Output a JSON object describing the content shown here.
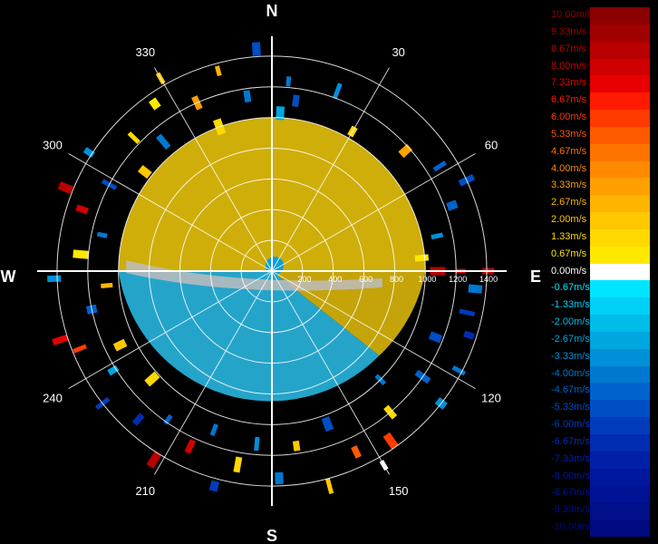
{
  "chart_data": {
    "type": "polar-ppi",
    "compass": {
      "north": "N",
      "east": "E",
      "south": "S",
      "west": "W"
    },
    "azimuth_labels": [
      "30",
      "60",
      "120",
      "150",
      "210",
      "240",
      "300",
      "330"
    ],
    "range_labels": [
      "200",
      "400",
      "600",
      "800",
      "1000",
      "1200",
      "1400"
    ],
    "range_rings": [
      200,
      400,
      600,
      800,
      1000,
      1200,
      1400
    ],
    "max_range": 1500,
    "spokes_deg": [
      0,
      30,
      60,
      90,
      120,
      150,
      180,
      210,
      240,
      270,
      300,
      330
    ],
    "central_echo": {
      "approaching_color": "#e6c10a",
      "receding_color": "#29b6e0",
      "zero_color": "#bdbdbd",
      "approx_radius": 1000
    },
    "scatter_gates": [
      {
        "az": 5,
        "r": 1240,
        "v": -4.0
      },
      {
        "az": 8,
        "r": 1120,
        "v": -5.3
      },
      {
        "az": 3,
        "r": 1030,
        "v": -2.7
      },
      {
        "az": 20,
        "r": 1250,
        "v": -3.3
      },
      {
        "az": 30,
        "r": 1050,
        "v": 1.3
      },
      {
        "az": 48,
        "r": 1170,
        "v": 3.3
      },
      {
        "az": 58,
        "r": 1290,
        "v": -4.7
      },
      {
        "az": 65,
        "r": 1400,
        "v": -5.3
      },
      {
        "az": 70,
        "r": 1250,
        "v": -4.7
      },
      {
        "az": 78,
        "r": 1100,
        "v": -3.3
      },
      {
        "az": 85,
        "r": 980,
        "v": 0.67
      },
      {
        "az": 90,
        "r": 1080,
        "v": 8.7
      },
      {
        "az": 90,
        "r": 1230,
        "v": 8.0
      },
      {
        "az": 90,
        "r": 1410,
        "v": 8.7
      },
      {
        "az": 95,
        "r": 1330,
        "v": -4.0
      },
      {
        "az": 102,
        "r": 1300,
        "v": -6.0
      },
      {
        "az": 108,
        "r": 1350,
        "v": -6.7
      },
      {
        "az": 112,
        "r": 1150,
        "v": -5.3
      },
      {
        "az": 118,
        "r": 1380,
        "v": -4.0
      },
      {
        "az": 125,
        "r": 1200,
        "v": -4.7
      },
      {
        "az": 128,
        "r": 1400,
        "v": -3.3
      },
      {
        "az": 135,
        "r": 1000,
        "v": -4.0
      },
      {
        "az": 140,
        "r": 1200,
        "v": 1.3
      },
      {
        "az": 145,
        "r": 1350,
        "v": 6.0
      },
      {
        "az": 150,
        "r": 1460,
        "v": -0.3
      },
      {
        "az": 155,
        "r": 1300,
        "v": 5.3
      },
      {
        "az": 160,
        "r": 1060,
        "v": -5.3
      },
      {
        "az": 165,
        "r": 1450,
        "v": 2.0
      },
      {
        "az": 172,
        "r": 1150,
        "v": 2.0
      },
      {
        "az": 178,
        "r": 1350,
        "v": -4.0
      },
      {
        "az": 185,
        "r": 1130,
        "v": -3.3
      },
      {
        "az": 190,
        "r": 1280,
        "v": 1.3
      },
      {
        "az": 195,
        "r": 1450,
        "v": -6.0
      },
      {
        "az": 200,
        "r": 1100,
        "v": -4.0
      },
      {
        "az": 205,
        "r": 1260,
        "v": 8.0
      },
      {
        "az": 212,
        "r": 1450,
        "v": 8.7
      },
      {
        "az": 215,
        "r": 1180,
        "v": -4.7
      },
      {
        "az": 222,
        "r": 1300,
        "v": -6.7
      },
      {
        "az": 228,
        "r": 1050,
        "v": 1.3
      },
      {
        "az": 232,
        "r": 1400,
        "v": -6.0
      },
      {
        "az": 238,
        "r": 1220,
        "v": -2.7
      },
      {
        "az": 244,
        "r": 1100,
        "v": 2.0
      },
      {
        "az": 248,
        "r": 1350,
        "v": 6.0
      },
      {
        "az": 252,
        "r": 1450,
        "v": 7.3
      },
      {
        "az": 258,
        "r": 1200,
        "v": -4.7
      },
      {
        "az": 265,
        "r": 1080,
        "v": 2.67
      },
      {
        "az": 268,
        "r": 1420,
        "v": -3.3
      },
      {
        "az": 275,
        "r": 1250,
        "v": 0.67
      },
      {
        "az": 282,
        "r": 1130,
        "v": -4.0
      },
      {
        "az": 288,
        "r": 1300,
        "v": 8.0
      },
      {
        "az": 292,
        "r": 1450,
        "v": 8.7
      },
      {
        "az": 298,
        "r": 1200,
        "v": -5.3
      },
      {
        "az": 303,
        "r": 1420,
        "v": -3.3
      },
      {
        "az": 308,
        "r": 1050,
        "v": 2.0
      },
      {
        "az": 314,
        "r": 1250,
        "v": 1.3
      },
      {
        "az": 320,
        "r": 1100,
        "v": -4.0
      },
      {
        "az": 325,
        "r": 1330,
        "v": 0.67
      },
      {
        "az": 330,
        "r": 1450,
        "v": 2.0
      },
      {
        "az": 336,
        "r": 1200,
        "v": 3.3
      },
      {
        "az": 340,
        "r": 1000,
        "v": 1.3
      },
      {
        "az": 345,
        "r": 1350,
        "v": 2.67
      },
      {
        "az": 352,
        "r": 1150,
        "v": -4.0
      },
      {
        "az": 356,
        "r": 1450,
        "v": -5.3
      }
    ],
    "legend": {
      "unit": "m/s",
      "entries": [
        {
          "label": "10.00m/s",
          "color": "#8b0000"
        },
        {
          "label": "9.33m/s",
          "color": "#a00000"
        },
        {
          "label": "8.67m/s",
          "color": "#b80000"
        },
        {
          "label": "8.00m/s",
          "color": "#d00000"
        },
        {
          "label": "7.33m/s",
          "color": "#e60000"
        },
        {
          "label": "6.67m/s",
          "color": "#ff1a00"
        },
        {
          "label": "6.00m/s",
          "color": "#ff3b00"
        },
        {
          "label": "5.33m/s",
          "color": "#ff5a00"
        },
        {
          "label": "4.67m/s",
          "color": "#ff7300"
        },
        {
          "label": "4.00m/s",
          "color": "#ff8a00"
        },
        {
          "label": "3.33m/s",
          "color": "#ffa000"
        },
        {
          "label": "2.67m/s",
          "color": "#ffb400"
        },
        {
          "label": "2.00m/s",
          "color": "#ffc800"
        },
        {
          "label": "1.33m/s",
          "color": "#ffd900"
        },
        {
          "label": "0.67m/s",
          "color": "#ffe800"
        },
        {
          "label": "0.00m/s",
          "color": "#ffffff"
        },
        {
          "label": "-0.67m/s",
          "color": "#00e5ff"
        },
        {
          "label": "-1.33m/s",
          "color": "#00d0f5"
        },
        {
          "label": "-2.00m/s",
          "color": "#00bce8"
        },
        {
          "label": "-2.67m/s",
          "color": "#00a6e0"
        },
        {
          "label": "-3.33m/s",
          "color": "#0090d8"
        },
        {
          "label": "-4.00m/s",
          "color": "#0078d0"
        },
        {
          "label": "-4.67m/s",
          "color": "#0062cc"
        },
        {
          "label": "-5.33m/s",
          "color": "#004ec4"
        },
        {
          "label": "-6.00m/s",
          "color": "#003cbb"
        },
        {
          "label": "-6.67m/s",
          "color": "#002cb2"
        },
        {
          "label": "-7.33m/s",
          "color": "#0020a8"
        },
        {
          "label": "-8.00m/s",
          "color": "#00189e"
        },
        {
          "label": "-8.67m/s",
          "color": "#001394"
        },
        {
          "label": "-9.33m/s",
          "color": "#000f8a"
        },
        {
          "label": "-10.00m/s",
          "color": "#000a80"
        }
      ]
    },
    "grid": true,
    "background": "#000000"
  }
}
